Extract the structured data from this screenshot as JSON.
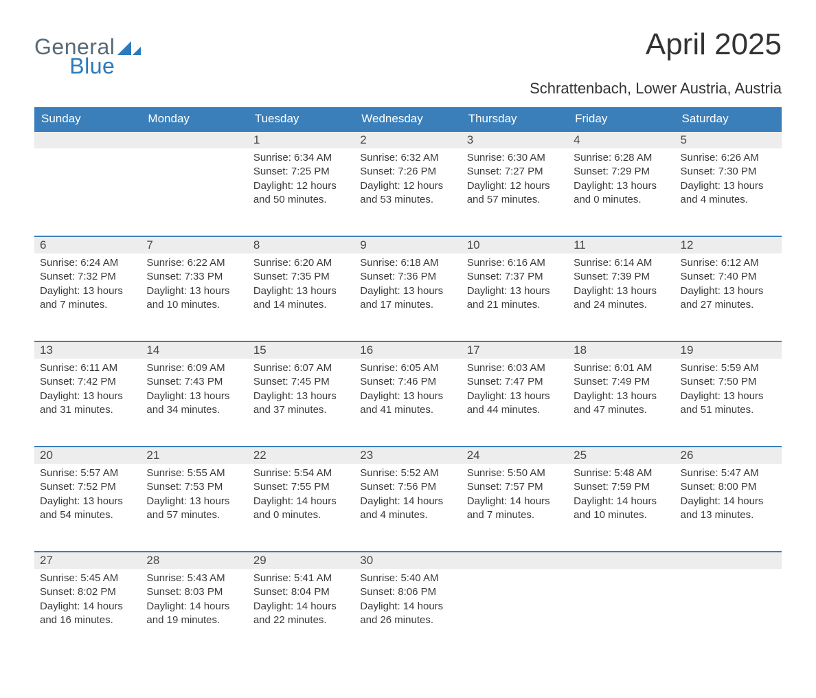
{
  "brand": {
    "word1": "General",
    "word2": "Blue",
    "accent_color": "#2a7bbd",
    "text_color": "#586a78"
  },
  "title": "April 2025",
  "subtitle": "Schrattenbach, Lower Austria, Austria",
  "calendar": {
    "type": "table",
    "header_bg": "#3a7fba",
    "header_fg": "#ffffff",
    "daynum_bg": "#ededed",
    "row_border_color": "#3a7fba",
    "text_color": "#3a3a3a",
    "columns": [
      "Sunday",
      "Monday",
      "Tuesday",
      "Wednesday",
      "Thursday",
      "Friday",
      "Saturday"
    ],
    "weeks": [
      [
        null,
        null,
        {
          "n": "1",
          "sunrise": "Sunrise: 6:34 AM",
          "sunset": "Sunset: 7:25 PM",
          "daylight": "Daylight: 12 hours and 50 minutes."
        },
        {
          "n": "2",
          "sunrise": "Sunrise: 6:32 AM",
          "sunset": "Sunset: 7:26 PM",
          "daylight": "Daylight: 12 hours and 53 minutes."
        },
        {
          "n": "3",
          "sunrise": "Sunrise: 6:30 AM",
          "sunset": "Sunset: 7:27 PM",
          "daylight": "Daylight: 12 hours and 57 minutes."
        },
        {
          "n": "4",
          "sunrise": "Sunrise: 6:28 AM",
          "sunset": "Sunset: 7:29 PM",
          "daylight": "Daylight: 13 hours and 0 minutes."
        },
        {
          "n": "5",
          "sunrise": "Sunrise: 6:26 AM",
          "sunset": "Sunset: 7:30 PM",
          "daylight": "Daylight: 13 hours and 4 minutes."
        }
      ],
      [
        {
          "n": "6",
          "sunrise": "Sunrise: 6:24 AM",
          "sunset": "Sunset: 7:32 PM",
          "daylight": "Daylight: 13 hours and 7 minutes."
        },
        {
          "n": "7",
          "sunrise": "Sunrise: 6:22 AM",
          "sunset": "Sunset: 7:33 PM",
          "daylight": "Daylight: 13 hours and 10 minutes."
        },
        {
          "n": "8",
          "sunrise": "Sunrise: 6:20 AM",
          "sunset": "Sunset: 7:35 PM",
          "daylight": "Daylight: 13 hours and 14 minutes."
        },
        {
          "n": "9",
          "sunrise": "Sunrise: 6:18 AM",
          "sunset": "Sunset: 7:36 PM",
          "daylight": "Daylight: 13 hours and 17 minutes."
        },
        {
          "n": "10",
          "sunrise": "Sunrise: 6:16 AM",
          "sunset": "Sunset: 7:37 PM",
          "daylight": "Daylight: 13 hours and 21 minutes."
        },
        {
          "n": "11",
          "sunrise": "Sunrise: 6:14 AM",
          "sunset": "Sunset: 7:39 PM",
          "daylight": "Daylight: 13 hours and 24 minutes."
        },
        {
          "n": "12",
          "sunrise": "Sunrise: 6:12 AM",
          "sunset": "Sunset: 7:40 PM",
          "daylight": "Daylight: 13 hours and 27 minutes."
        }
      ],
      [
        {
          "n": "13",
          "sunrise": "Sunrise: 6:11 AM",
          "sunset": "Sunset: 7:42 PM",
          "daylight": "Daylight: 13 hours and 31 minutes."
        },
        {
          "n": "14",
          "sunrise": "Sunrise: 6:09 AM",
          "sunset": "Sunset: 7:43 PM",
          "daylight": "Daylight: 13 hours and 34 minutes."
        },
        {
          "n": "15",
          "sunrise": "Sunrise: 6:07 AM",
          "sunset": "Sunset: 7:45 PM",
          "daylight": "Daylight: 13 hours and 37 minutes."
        },
        {
          "n": "16",
          "sunrise": "Sunrise: 6:05 AM",
          "sunset": "Sunset: 7:46 PM",
          "daylight": "Daylight: 13 hours and 41 minutes."
        },
        {
          "n": "17",
          "sunrise": "Sunrise: 6:03 AM",
          "sunset": "Sunset: 7:47 PM",
          "daylight": "Daylight: 13 hours and 44 minutes."
        },
        {
          "n": "18",
          "sunrise": "Sunrise: 6:01 AM",
          "sunset": "Sunset: 7:49 PM",
          "daylight": "Daylight: 13 hours and 47 minutes."
        },
        {
          "n": "19",
          "sunrise": "Sunrise: 5:59 AM",
          "sunset": "Sunset: 7:50 PM",
          "daylight": "Daylight: 13 hours and 51 minutes."
        }
      ],
      [
        {
          "n": "20",
          "sunrise": "Sunrise: 5:57 AM",
          "sunset": "Sunset: 7:52 PM",
          "daylight": "Daylight: 13 hours and 54 minutes."
        },
        {
          "n": "21",
          "sunrise": "Sunrise: 5:55 AM",
          "sunset": "Sunset: 7:53 PM",
          "daylight": "Daylight: 13 hours and 57 minutes."
        },
        {
          "n": "22",
          "sunrise": "Sunrise: 5:54 AM",
          "sunset": "Sunset: 7:55 PM",
          "daylight": "Daylight: 14 hours and 0 minutes."
        },
        {
          "n": "23",
          "sunrise": "Sunrise: 5:52 AM",
          "sunset": "Sunset: 7:56 PM",
          "daylight": "Daylight: 14 hours and 4 minutes."
        },
        {
          "n": "24",
          "sunrise": "Sunrise: 5:50 AM",
          "sunset": "Sunset: 7:57 PM",
          "daylight": "Daylight: 14 hours and 7 minutes."
        },
        {
          "n": "25",
          "sunrise": "Sunrise: 5:48 AM",
          "sunset": "Sunset: 7:59 PM",
          "daylight": "Daylight: 14 hours and 10 minutes."
        },
        {
          "n": "26",
          "sunrise": "Sunrise: 5:47 AM",
          "sunset": "Sunset: 8:00 PM",
          "daylight": "Daylight: 14 hours and 13 minutes."
        }
      ],
      [
        {
          "n": "27",
          "sunrise": "Sunrise: 5:45 AM",
          "sunset": "Sunset: 8:02 PM",
          "daylight": "Daylight: 14 hours and 16 minutes."
        },
        {
          "n": "28",
          "sunrise": "Sunrise: 5:43 AM",
          "sunset": "Sunset: 8:03 PM",
          "daylight": "Daylight: 14 hours and 19 minutes."
        },
        {
          "n": "29",
          "sunrise": "Sunrise: 5:41 AM",
          "sunset": "Sunset: 8:04 PM",
          "daylight": "Daylight: 14 hours and 22 minutes."
        },
        {
          "n": "30",
          "sunrise": "Sunrise: 5:40 AM",
          "sunset": "Sunset: 8:06 PM",
          "daylight": "Daylight: 14 hours and 26 minutes."
        },
        null,
        null,
        null
      ]
    ]
  }
}
